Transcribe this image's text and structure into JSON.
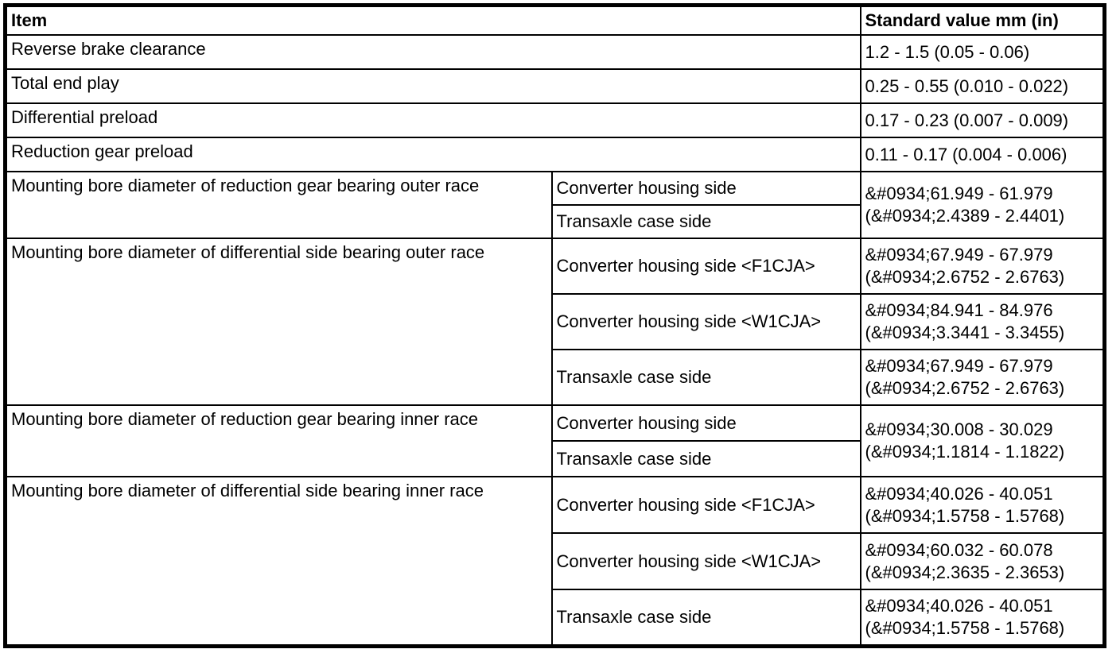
{
  "page": {
    "background_color": "#ffffff",
    "border_color": "#000000",
    "text_color": "#000000"
  },
  "table": {
    "header": {
      "item_label": "Item",
      "value_label": "Standard value mm (in)"
    },
    "simple_rows": [
      {
        "item": "Reverse brake clearance",
        "value": "1.2 - 1.5 (0.05 - 0.06)"
      },
      {
        "item": "Total end play",
        "value": "0.25 - 0.55 (0.010 - 0.022)"
      },
      {
        "item": "Differential preload",
        "value": "0.17 - 0.23 (0.007 - 0.009)"
      },
      {
        "item": "Reduction gear preload",
        "value": "0.11 - 0.17 (0.004 - 0.006)"
      }
    ],
    "grouped_rows": [
      {
        "item": "Mounting bore diameter of reduction gear bearing outer race",
        "shared_value": "&#0934;61.949 - 61.979\n(&#0934;2.4389 - 2.4401)",
        "sub_rows": [
          {
            "location": "Converter housing side"
          },
          {
            "location": "Transaxle case side"
          }
        ]
      },
      {
        "item": "Mounting bore diameter of differential side bearing outer race",
        "sub_rows": [
          {
            "location": "Converter housing side <F1CJA>",
            "value": "&#0934;67.949 - 67.979\n(&#0934;2.6752 - 2.6763)"
          },
          {
            "location": "Converter housing side <W1CJA>",
            "value": "&#0934;84.941 - 84.976\n(&#0934;3.3441 - 3.3455)"
          },
          {
            "location": "Transaxle case side",
            "value": "&#0934;67.949 - 67.979\n(&#0934;2.6752 - 2.6763)"
          }
        ]
      },
      {
        "item": "Mounting bore diameter of reduction gear bearing inner race",
        "shared_value": "&#0934;30.008 - 30.029\n(&#0934;1.1814 - 1.1822)",
        "sub_rows": [
          {
            "location": "Converter housing side"
          },
          {
            "location": "Transaxle case side"
          }
        ]
      },
      {
        "item": "Mounting bore diameter of differential side bearing inner race",
        "sub_rows": [
          {
            "location": "Converter housing side <F1CJA>",
            "value": "&#0934;40.026 - 40.051\n(&#0934;1.5758 - 1.5768)"
          },
          {
            "location": "Converter housing side <W1CJA>",
            "value": "&#0934;60.032 - 60.078\n(&#0934;2.3635 - 2.3653)"
          },
          {
            "location": "Transaxle case side",
            "value": "&#0934;40.026 - 40.051\n(&#0934;1.5758 - 1.5768)"
          }
        ]
      }
    ]
  }
}
